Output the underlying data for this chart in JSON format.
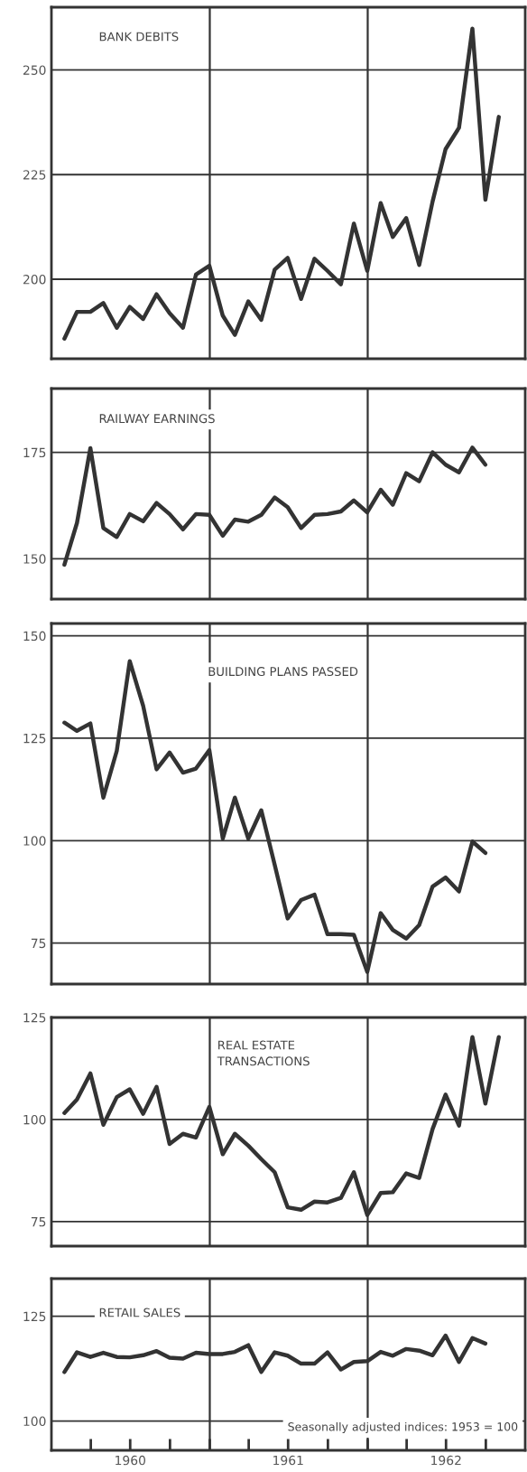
{
  "chart_data": [
    {
      "type": "line",
      "title": "BANK DEBITS",
      "x": [
        "1960-01-31",
        "1960-02-29",
        "1960-03-31",
        "1960-04-30",
        "1960-05-31",
        "1960-06-30",
        "1960-07-31",
        "1960-08-31",
        "1960-09-30",
        "1960-10-31",
        "1960-11-30",
        "1960-12-31",
        "1961-01-31",
        "1961-02-28",
        "1961-03-31",
        "1961-04-30",
        "1961-05-31",
        "1961-06-30",
        "1961-07-31",
        "1961-08-31",
        "1961-09-30",
        "1961-10-31",
        "1961-11-30",
        "1961-12-31",
        "1962-01-31",
        "1962-02-28",
        "1962-03-31",
        "1962-04-30",
        "1962-05-31",
        "1962-06-30",
        "1962-07-31",
        "1962-08-31",
        "1962-09-30",
        "1962-10-31"
      ],
      "series": [
        {
          "color": "#333333",
          "values": [
            185.8,
            192.2,
            192.2,
            194.3,
            188.4,
            193.4,
            190.5,
            196.4,
            191.9,
            188.4,
            201.1,
            203.2,
            191.3,
            186.7,
            194.7,
            190.3,
            202.3,
            205.1,
            195.3,
            204.9,
            202.0,
            198.8,
            213.3,
            202.0,
            218.2,
            210.1,
            214.6,
            203.4,
            218.6,
            231.1,
            236.2,
            259.9,
            219.0,
            238.8
          ]
        }
      ],
      "xlim": [
        "1960-01-01",
        "1962-12-31"
      ],
      "ylim": [
        181,
        265
      ],
      "yticks": [
        200,
        225,
        250
      ],
      "grid": "y",
      "tick_labels": "y",
      "ref_lines": [
        {
          "axis": "x",
          "value": "1961-01-01",
          "color": "#333333"
        },
        {
          "axis": "x",
          "value": "1962-01-01",
          "color": "#333333"
        }
      ]
    },
    {
      "type": "line",
      "title": "RAILWAY EARNINGS",
      "series": [
        {
          "color": "#333333",
          "values": [
            148.6,
            158.4,
            176.0,
            157.2,
            155.1,
            160.5,
            158.8,
            163.1,
            160.5,
            156.9,
            160.5,
            160.3,
            155.4,
            159.2,
            158.7,
            160.3,
            164.4,
            162.1,
            157.2,
            160.3,
            160.5,
            161.1,
            163.7,
            160.9,
            166.2,
            162.7,
            170.1,
            168.2,
            175.0,
            172.1,
            170.3,
            176.1,
            172.1
          ],
          "x": [
            "1960-01-31",
            "1960-02-29",
            "1960-03-31",
            "1960-04-30",
            "1960-05-31",
            "1960-06-30",
            "1960-07-31",
            "1960-08-31",
            "1960-09-30",
            "1960-10-31",
            "1960-11-30",
            "1960-12-31",
            "1961-01-31",
            "1961-02-28",
            "1961-03-31",
            "1961-04-30",
            "1961-05-31",
            "1961-06-30",
            "1961-07-31",
            "1961-08-31",
            "1961-09-30",
            "1961-10-31",
            "1961-11-30",
            "1961-12-31",
            "1962-01-31",
            "1962-02-28",
            "1962-03-31",
            "1962-04-30",
            "1962-05-31",
            "1962-06-30",
            "1962-07-31",
            "1962-08-31",
            "1962-09-30"
          ]
        }
      ],
      "xlim": [
        "1960-01-01",
        "1962-12-31"
      ],
      "ylim": [
        140.5,
        190
      ],
      "yticks": [
        150,
        175
      ],
      "grid": "y",
      "tick_labels": "y",
      "ref_lines": [
        {
          "axis": "x",
          "value": "1961-01-01",
          "color": "#333333"
        },
        {
          "axis": "x",
          "value": "1962-01-01",
          "color": "#333333"
        }
      ]
    },
    {
      "type": "line",
      "title": "BUILDING PLANS PASSED",
      "series": [
        {
          "color": "#333333",
          "values": [
            128.8,
            126.8,
            128.6,
            110.5,
            121.9,
            143.8,
            132.9,
            117.4,
            121.5,
            116.6,
            117.6,
            122.1,
            100.5,
            110.5,
            100.5,
            107.4,
            94.1,
            81.0,
            85.5,
            86.8,
            77.2,
            77.2,
            77.0,
            68.0,
            82.3,
            78.2,
            76.1,
            79.4,
            88.8,
            91.0,
            87.6,
            99.8,
            97.0
          ],
          "x": [
            "1960-01-31",
            "1960-02-29",
            "1960-03-31",
            "1960-04-30",
            "1960-05-31",
            "1960-06-30",
            "1960-07-31",
            "1960-08-31",
            "1960-09-30",
            "1960-10-31",
            "1960-11-30",
            "1960-12-31",
            "1961-01-31",
            "1961-02-28",
            "1961-03-31",
            "1961-04-30",
            "1961-05-31",
            "1961-06-30",
            "1961-07-31",
            "1961-08-31",
            "1961-09-30",
            "1961-10-31",
            "1961-11-30",
            "1961-12-31",
            "1962-01-31",
            "1962-02-28",
            "1962-03-31",
            "1962-04-30",
            "1962-05-31",
            "1962-06-30",
            "1962-07-31",
            "1962-08-31",
            "1962-09-30"
          ]
        }
      ],
      "xlim": [
        "1960-01-01",
        "1962-12-31"
      ],
      "ylim": [
        65,
        153
      ],
      "yticks": [
        75,
        100,
        125,
        150
      ],
      "grid": "y",
      "tick_labels": "y",
      "ref_lines": [
        {
          "axis": "x",
          "value": "1961-01-01",
          "color": "#333333"
        },
        {
          "axis": "x",
          "value": "1962-01-01",
          "color": "#333333"
        }
      ]
    },
    {
      "type": "line",
      "title": "REAL ESTATE\nTRANSACTIONS",
      "x": [
        "1960-01-31",
        "1960-02-29",
        "1960-03-31",
        "1960-04-30",
        "1960-05-31",
        "1960-06-30",
        "1960-07-31",
        "1960-08-31",
        "1960-09-30",
        "1960-10-31",
        "1960-11-30",
        "1960-12-31",
        "1961-01-31",
        "1961-02-28",
        "1961-03-31",
        "1961-04-30",
        "1961-05-31",
        "1961-06-30",
        "1961-07-31",
        "1961-08-31",
        "1961-09-30",
        "1961-10-31",
        "1961-11-30",
        "1961-12-31",
        "1962-01-31",
        "1962-02-28",
        "1962-03-31",
        "1962-04-30",
        "1962-05-31",
        "1962-06-30",
        "1962-07-31",
        "1962-08-31",
        "1962-09-30",
        "1962-10-31"
      ],
      "series": [
        {
          "color": "#333333",
          "values": [
            101.6,
            104.9,
            111.3,
            98.7,
            105.5,
            107.4,
            101.4,
            108.0,
            94.0,
            96.5,
            95.6,
            103.1,
            91.5,
            96.5,
            93.6,
            90.3,
            87.1,
            78.5,
            77.9,
            79.9,
            79.7,
            80.8,
            87.1,
            76.6,
            82.0,
            82.2,
            86.8,
            85.7,
            97.7,
            106.1,
            98.5,
            120.2,
            103.9,
            120.2
          ]
        }
      ],
      "xlim": [
        "1960-01-01",
        "1962-12-31"
      ],
      "ylim": [
        69,
        125
      ],
      "yticks": [
        75,
        100,
        125
      ],
      "grid": "y",
      "tick_labels": "y",
      "ref_lines": [
        {
          "axis": "x",
          "value": "1961-01-01",
          "color": "#333333"
        },
        {
          "axis": "x",
          "value": "1962-01-01",
          "color": "#333333"
        }
      ]
    },
    {
      "type": "line",
      "title": "RETAIL SALES",
      "series": [
        {
          "color": "#333333",
          "values": [
            111.7,
            116.4,
            115.3,
            116.3,
            115.3,
            115.2,
            115.7,
            116.7,
            115.1,
            114.9,
            116.3,
            116.0,
            116.0,
            116.5,
            118.1,
            111.7,
            116.4,
            115.6,
            113.7,
            113.7,
            116.4,
            112.3,
            114.1,
            114.3,
            116.5,
            115.6,
            117.2,
            116.8,
            115.7,
            120.4,
            114.1,
            119.8,
            118.5
          ],
          "x": [
            "1960-01-31",
            "1960-02-29",
            "1960-03-31",
            "1960-04-30",
            "1960-05-31",
            "1960-06-30",
            "1960-07-31",
            "1960-08-31",
            "1960-09-30",
            "1960-10-31",
            "1960-11-30",
            "1960-12-31",
            "1961-01-31",
            "1961-02-28",
            "1961-03-31",
            "1961-04-30",
            "1961-05-31",
            "1961-06-30",
            "1961-07-31",
            "1961-08-31",
            "1961-09-30",
            "1961-10-31",
            "1961-11-30",
            "1961-12-31",
            "1962-01-31",
            "1962-02-28",
            "1962-03-31",
            "1962-04-30",
            "1962-05-31",
            "1962-06-30",
            "1962-07-31",
            "1962-08-31",
            "1962-09-30"
          ]
        }
      ],
      "xlim": [
        "1960-01-01",
        "1962-12-31"
      ],
      "ylim": [
        93,
        134
      ],
      "yticks": [
        100,
        125
      ],
      "grid": "y",
      "xticks": [
        {
          "value": "1960-04-01",
          "label": null
        },
        {
          "value": "1960-07-01",
          "label": "1960"
        },
        {
          "value": "1960-10-01",
          "label": null
        },
        {
          "value": "1961-01-01",
          "label": null
        },
        {
          "value": "1961-04-01",
          "label": null
        },
        {
          "value": "1961-07-01",
          "label": "1961"
        },
        {
          "value": "1961-10-01",
          "label": null
        },
        {
          "value": "1962-01-01",
          "label": null
        },
        {
          "value": "1962-04-01",
          "label": null
        },
        {
          "value": "1962-07-01",
          "label": "1962"
        },
        {
          "value": "1962-10-01",
          "label": null
        }
      ],
      "ref_lines": [
        {
          "axis": "x",
          "value": "1961-01-01",
          "color": "#333333"
        },
        {
          "axis": "x",
          "value": "1962-01-01",
          "color": "#333333"
        }
      ],
      "annotations": [
        "Seasonally adjusted indices: 1953 = 100"
      ]
    }
  ]
}
